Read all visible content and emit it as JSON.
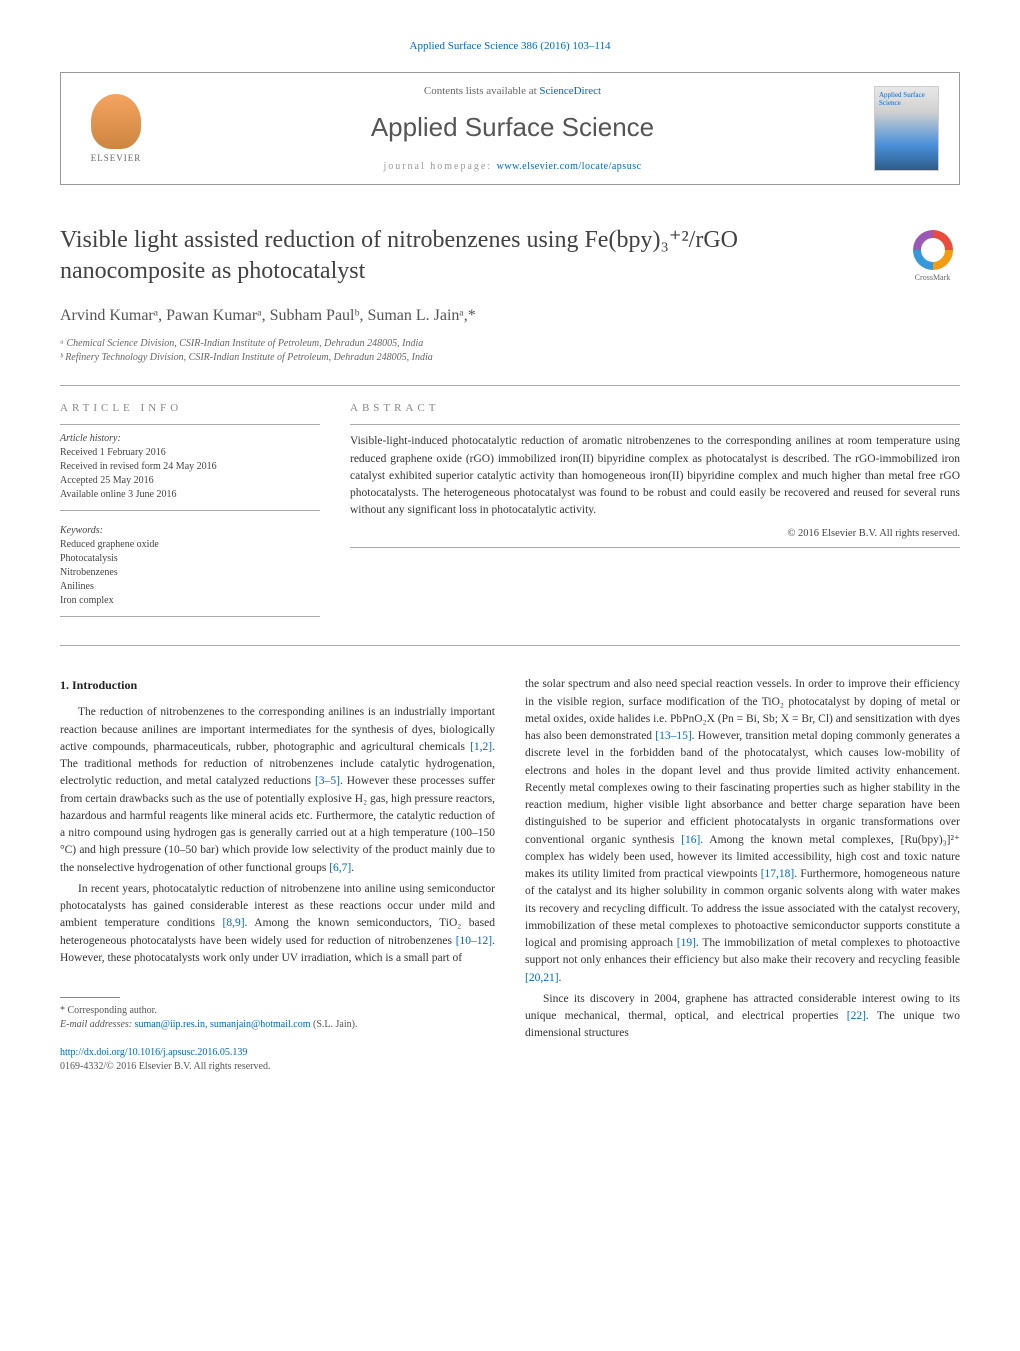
{
  "journal_header_link": "Applied Surface Science 386 (2016) 103–114",
  "header": {
    "contents_prefix": "Contents lists available at ",
    "contents_link": "ScienceDirect",
    "journal_title": "Applied Surface Science",
    "homepage_prefix": "journal homepage: ",
    "homepage_link": "www.elsevier.com/locate/apsusc",
    "elsevier_label": "ELSEVIER",
    "cover_text": "Applied Surface Science"
  },
  "article": {
    "title": "Visible light assisted reduction of nitrobenzenes using Fe(bpy)₃⁺²/rGO nanocomposite as photocatalyst",
    "crossmark_label": "CrossMark",
    "authors_html": "Arvind Kumarᵃ, Pawan Kumarᵃ, Subham Paulᵇ, Suman L. Jainᵃ,*",
    "affiliations": [
      "ᵃ Chemical Science Division, CSIR-Indian Institute of Petroleum, Dehradun 248005, India",
      "ᵇ Refinery Technology Division, CSIR-Indian Institute of Petroleum, Dehradun 248005, India"
    ]
  },
  "info": {
    "heading": "ARTICLE INFO",
    "history_heading": "Article history:",
    "history": [
      "Received 1 February 2016",
      "Received in revised form 24 May 2016",
      "Accepted 25 May 2016",
      "Available online 3 June 2016"
    ],
    "keywords_heading": "Keywords:",
    "keywords": [
      "Reduced graphene oxide",
      "Photocatalysis",
      "Nitrobenzenes",
      "Anilines",
      "Iron complex"
    ]
  },
  "abstract": {
    "heading": "ABSTRACT",
    "text": "Visible-light-induced photocatalytic reduction of aromatic nitrobenzenes to the corresponding anilines at room temperature using reduced graphene oxide (rGO) immobilized iron(II) bipyridine complex as photocatalyst is described. The rGO-immobilized iron catalyst exhibited superior catalytic activity than homogeneous iron(II) bipyridine complex and much higher than metal free rGO photocatalysts. The heterogeneous photocatalyst was found to be robust and could easily be recovered and reused for several runs without any significant loss in photocatalytic activity.",
    "copyright": "© 2016 Elsevier B.V. All rights reserved."
  },
  "body": {
    "section_heading": "1. Introduction",
    "paragraphs": [
      "The reduction of nitrobenzenes to the corresponding anilines is an industrially important reaction because anilines are important intermediates for the synthesis of dyes, biologically active compounds, pharmaceuticals, rubber, photographic and agricultural chemicals [1,2]. The traditional methods for reduction of nitrobenzenes include catalytic hydrogenation, electrolytic reduction, and metal catalyzed reductions [3–5]. However these processes suffer from certain drawbacks such as the use of potentially explosive H₂ gas, high pressure reactors, hazardous and harmful reagents like mineral acids etc. Furthermore, the catalytic reduction of a nitro compound using hydrogen gas is generally carried out at a high temperature (100–150 °C) and high pressure (10–50 bar) which provide low selectivity of the product mainly due to the nonselective hydrogenation of other functional groups [6,7].",
      "In recent years, photocatalytic reduction of nitrobenzene into aniline using semiconductor photocatalysts has gained considerable interest as these reactions occur under mild and ambient temperature conditions [8,9]. Among the known semiconductors, TiO₂ based heterogeneous photocatalysts have been widely used for reduction of nitrobenzenes [10–12]. However, these photocatalysts work only under UV irradiation, which is a small part of",
      "the solar spectrum and also need special reaction vessels. In order to improve their efficiency in the visible region, surface modification of the TiO₂ photocatalyst by doping of metal or metal oxides, oxide halides i.e. PbPnO₂X (Pn = Bi, Sb; X = Br, Cl) and sensitization with dyes has also been demonstrated [13–15]. However, transition metal doping commonly generates a discrete level in the forbidden band of the photocatalyst, which causes low-mobility of electrons and holes in the dopant level and thus provide limited activity enhancement. Recently metal complexes owing to their fascinating properties such as higher stability in the reaction medium, higher visible light absorbance and better charge separation have been distinguished to be superior and efficient photocatalysts in organic transformations over conventional organic synthesis [16]. Among the known metal complexes, [Ru(bpy)₃]²⁺ complex has widely been used, however its limited accessibility, high cost and toxic nature makes its utility limited from practical viewpoints [17,18]. Furthermore, homogeneous nature of the catalyst and its higher solubility in common organic solvents along with water makes its recovery and recycling difficult. To address the issue associated with the catalyst recovery, immobilization of these metal complexes to photoactive semiconductor supports constitute a logical and promising approach [19]. The immobilization of metal complexes to photoactive support not only enhances their efficiency but also make their recovery and recycling feasible [20,21].",
      "Since its discovery in 2004, graphene has attracted considerable interest owing to its unique mechanical, thermal, optical, and electrical properties [22]. The unique two dimensional structures"
    ]
  },
  "footer": {
    "corresponding": "* Corresponding author.",
    "email_prefix": "E-mail addresses: ",
    "emails": "suman@iip.res.in, sumanjain@hotmail.com",
    "email_suffix": " (S.L. Jain).",
    "doi": "http://dx.doi.org/10.1016/j.apsusc.2016.05.139",
    "issn": "0169-4332/© 2016 Elsevier B.V. All rights reserved."
  },
  "colors": {
    "link": "#0066cc",
    "text": "#333333",
    "heading_gray": "#888888",
    "border": "#999999"
  }
}
